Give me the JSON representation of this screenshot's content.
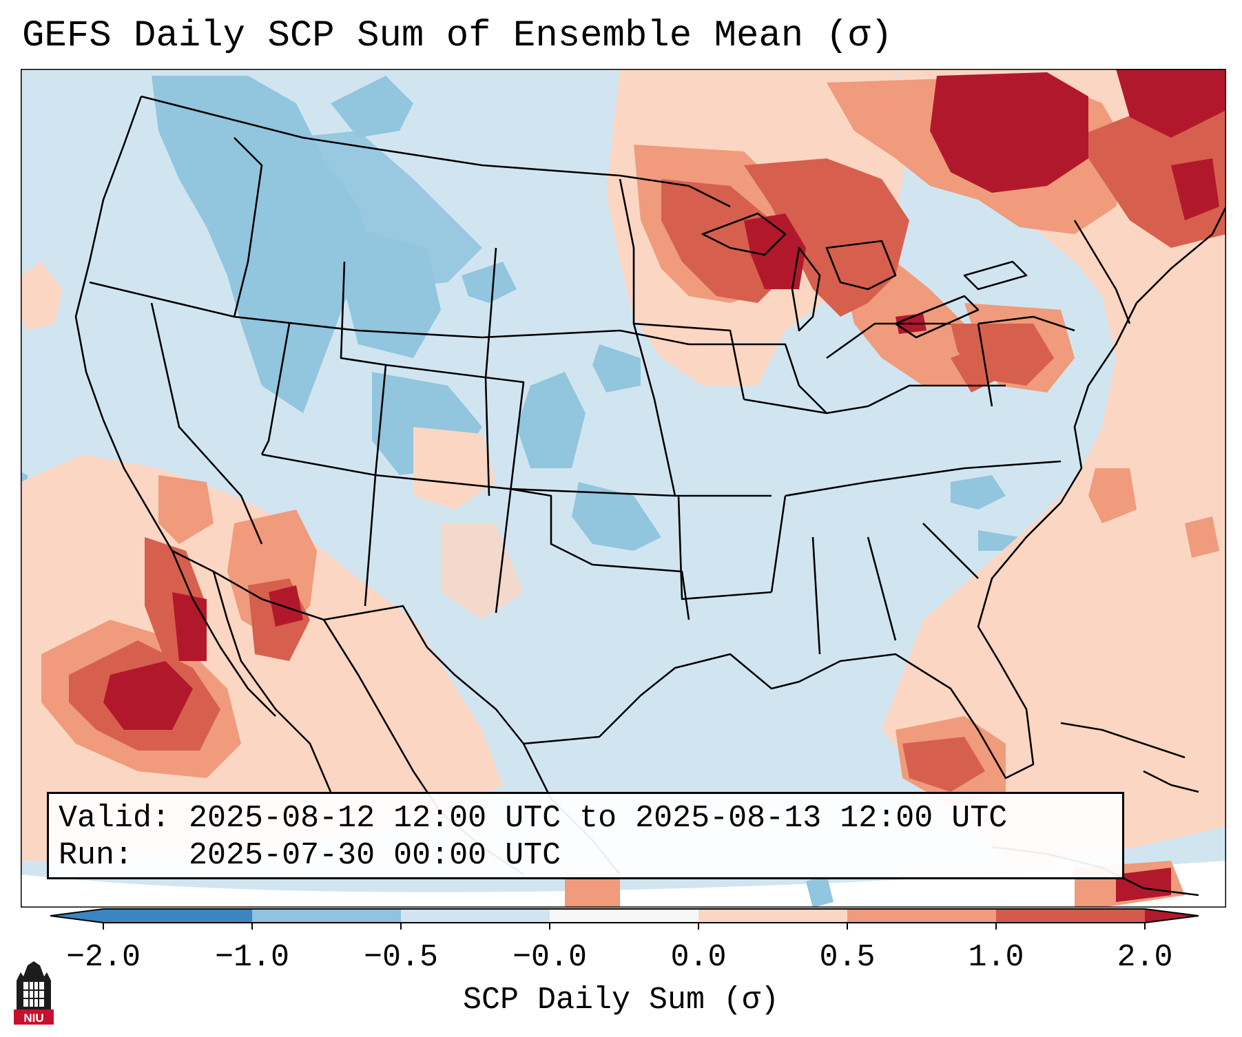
{
  "title": "GEFS Daily SCP Sum of Ensemble Mean (σ)",
  "legend": {
    "valid_label": "Valid:",
    "valid_value": "2025-08-12 12:00 UTC to 2025-08-13 12:00 UTC",
    "run_label": "Run:",
    "run_value": "2025-07-30 00:00 UTC"
  },
  "colorbar": {
    "label": "SCP Daily Sum (σ)",
    "ticks": [
      "−2.0",
      "−1.0",
      "−0.5",
      "−0.0",
      "0.0",
      "0.5",
      "1.0",
      "2.0"
    ],
    "colors": [
      "#3a86c0",
      "#8fc3df",
      "#d1e5f1",
      "#f6f7f8",
      "#fbd6c3",
      "#ef9b7c",
      "#d45b4c",
      "#b01a2c"
    ],
    "extend": "both"
  },
  "palette": {
    "ocean_pos_light": "#fbdccb",
    "land_neutral": "#d1e5f1",
    "neg_medium": "#92c5de",
    "pos_light": "#f4a98a",
    "pos_medium": "#d6604d",
    "pos_strong": "#b2182b"
  },
  "logo": {
    "icon": "niu-logo-icon",
    "text": "NIU"
  }
}
